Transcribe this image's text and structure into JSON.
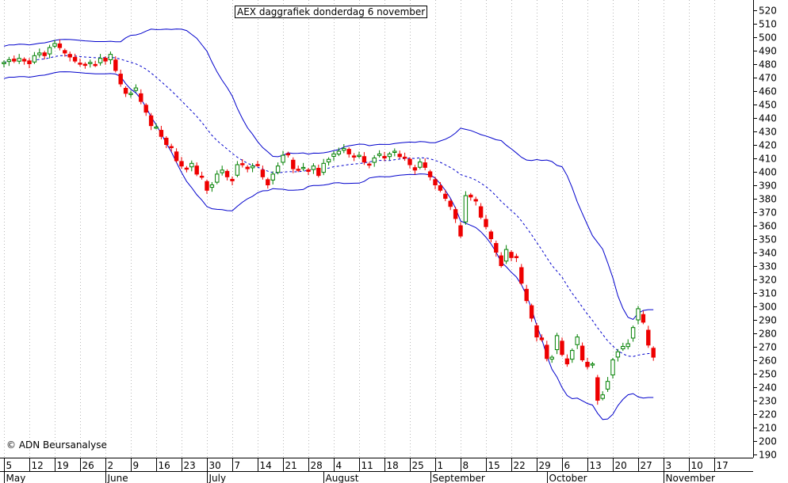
{
  "chart_data": {
    "type": "candlestick",
    "title": "AEX daggrafiek donderdag 6 november",
    "copyright": "© ADN Beursanalyse",
    "ylim": [
      190,
      520
    ],
    "y_ticks": [
      520,
      510,
      500,
      490,
      480,
      470,
      460,
      450,
      440,
      430,
      420,
      410,
      400,
      390,
      380,
      370,
      360,
      350,
      340,
      330,
      320,
      310,
      300,
      290,
      280,
      270,
      260,
      250,
      240,
      230,
      220,
      210,
      200,
      190
    ],
    "y_axis_side": "right",
    "grid": "vertical dotted lines at weekly x ticks",
    "x_ticks": [
      {
        "label": "5",
        "idx": 0
      },
      {
        "label": "12",
        "idx": 5
      },
      {
        "label": "19",
        "idx": 10
      },
      {
        "label": "26",
        "idx": 15
      },
      {
        "label": "2",
        "idx": 20
      },
      {
        "label": "9",
        "idx": 25
      },
      {
        "label": "16",
        "idx": 30
      },
      {
        "label": "23",
        "idx": 35
      },
      {
        "label": "30",
        "idx": 40
      },
      {
        "label": "7",
        "idx": 45
      },
      {
        "label": "14",
        "idx": 50
      },
      {
        "label": "21",
        "idx": 55
      },
      {
        "label": "28",
        "idx": 60
      },
      {
        "label": "4",
        "idx": 65
      },
      {
        "label": "11",
        "idx": 70
      },
      {
        "label": "18",
        "idx": 75
      },
      {
        "label": "25",
        "idx": 80
      },
      {
        "label": "1",
        "idx": 85
      },
      {
        "label": "8",
        "idx": 90
      },
      {
        "label": "15",
        "idx": 95
      },
      {
        "label": "22",
        "idx": 100
      },
      {
        "label": "29",
        "idx": 105
      },
      {
        "label": "6",
        "idx": 110
      },
      {
        "label": "13",
        "idx": 115
      },
      {
        "label": "20",
        "idx": 120
      },
      {
        "label": "27",
        "idx": 125
      },
      {
        "label": "3",
        "idx": 130
      },
      {
        "label": "10",
        "idx": 135
      },
      {
        "label": "17",
        "idx": 140
      }
    ],
    "months": [
      {
        "label": "May",
        "idx": 0
      },
      {
        "label": "June",
        "idx": 20
      },
      {
        "label": "July",
        "idx": 40
      },
      {
        "label": "August",
        "idx": 63
      },
      {
        "label": "September",
        "idx": 84
      },
      {
        "label": "October",
        "idx": 107
      },
      {
        "label": "November",
        "idx": 130
      }
    ],
    "up_color": "#008000",
    "down_color": "#ee0000",
    "band_color": "#0000cc",
    "close": [
      481,
      483,
      482,
      484,
      482,
      480,
      486,
      488,
      486,
      492,
      495,
      492,
      488,
      485,
      482,
      480,
      479,
      481,
      479,
      484,
      482,
      487,
      475,
      465,
      458,
      458,
      462,
      452,
      444,
      434,
      433,
      426,
      420,
      418,
      408,
      404,
      402,
      406,
      398,
      396,
      386,
      390,
      398,
      401,
      396,
      393,
      405,
      405,
      402,
      404,
      405,
      396,
      390,
      398,
      404,
      412,
      413,
      402,
      401,
      403,
      400,
      404,
      397,
      406,
      409,
      413,
      415,
      417,
      413,
      411,
      412,
      407,
      405,
      410,
      413,
      410,
      413,
      415,
      411,
      410,
      405,
      401,
      407,
      403,
      396,
      390,
      386,
      380,
      374,
      365,
      352,
      382,
      381,
      378,
      366,
      359,
      350,
      340,
      330,
      342,
      336,
      336,
      317,
      304,
      291,
      277,
      275,
      261,
      262,
      278,
      264,
      257,
      267,
      277,
      260,
      255,
      257,
      230,
      234,
      244,
      260,
      266,
      270,
      272,
      284,
      298,
      288,
      271,
      262
    ]
  }
}
